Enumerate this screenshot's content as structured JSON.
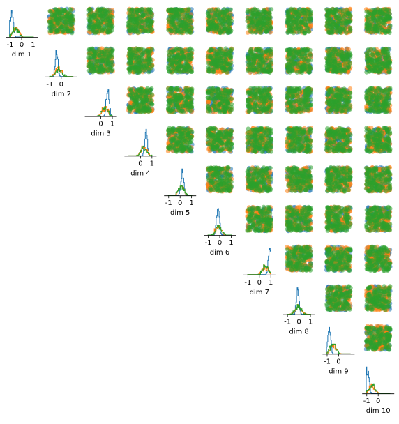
{
  "chart_data": {
    "type": "pairplot",
    "dimensions": [
      "dim 1",
      "dim 2",
      "dim 3",
      "dim 4",
      "dim 5",
      "dim 6",
      "dim 7",
      "dim 8",
      "dim 9",
      "dim 10"
    ],
    "series_colors": [
      "#1f77b4",
      "#ff7f0e",
      "#2ca02c"
    ],
    "upper_triangle": "scatter",
    "diagonal": "histogram",
    "grid": false,
    "legend": "none",
    "value_range": [
      -1.4,
      1.4
    ],
    "x_ticks": [
      [
        "-1",
        "0",
        "1"
      ],
      [
        "-1",
        "0"
      ],
      [
        "0",
        "1"
      ],
      [
        "0",
        "1"
      ],
      [
        "-1",
        "0",
        "1"
      ],
      [
        "-1",
        "0",
        "1"
      ],
      [
        "-1",
        "0",
        "1"
      ],
      [
        "-1",
        "0",
        "1"
      ],
      [
        "-1",
        "0"
      ],
      [
        "-1",
        "0"
      ]
    ],
    "diagonal_peak_location": [
      -0.85,
      -0.4,
      0.6,
      0.5,
      0.2,
      -0.15,
      0.9,
      -0.1,
      -0.8,
      -0.9
    ]
  }
}
